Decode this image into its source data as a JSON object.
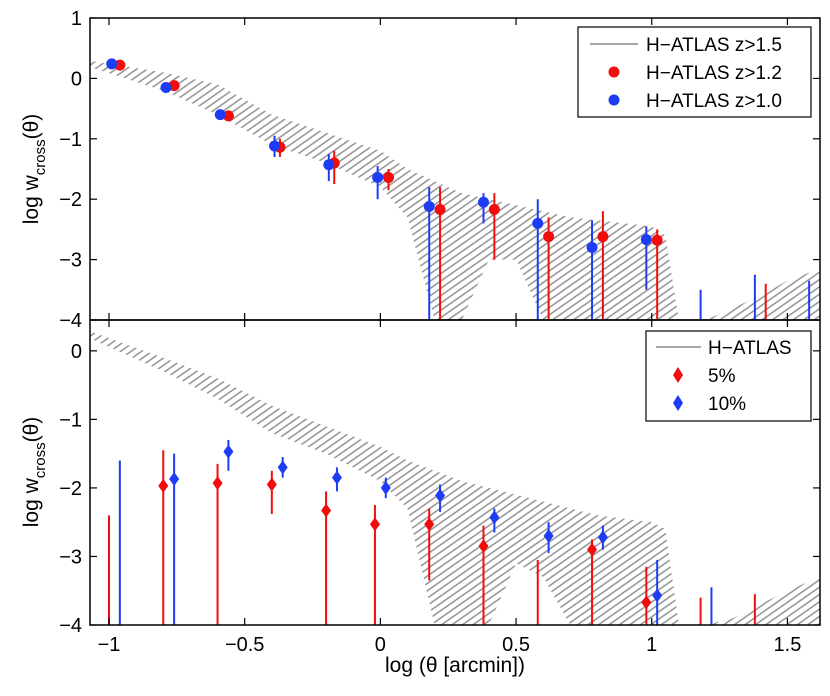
{
  "chart_data": [
    {
      "type": "scatter",
      "panel": "top",
      "xlabel": "",
      "ylabel_main": "log w",
      "ylabel_sub": "cross",
      "ylabel_tail": "(θ)",
      "xlim": [
        -1.07,
        1.62
      ],
      "ylim": [
        -4,
        1
      ],
      "yticks": [
        -4,
        -3,
        -2,
        -1,
        0,
        1
      ],
      "ytick_labels": [
        "−4",
        "−3",
        "−2",
        "−1",
        "0",
        "1"
      ],
      "legend_position": "top-right",
      "band": {
        "name": "H-ATLAS z>1.5",
        "color": "#8a8a8a",
        "x": [
          -1.08,
          -0.8,
          -0.6,
          -0.4,
          -0.2,
          0.0,
          0.1,
          0.2,
          0.3,
          0.4,
          0.5,
          0.6,
          0.7,
          0.8,
          0.9,
          1.0,
          1.05,
          1.1,
          1.2,
          1.3,
          1.4,
          1.5,
          1.62
        ],
        "upper": [
          0.3,
          0.1,
          -0.1,
          -0.6,
          -0.9,
          -1.2,
          -1.5,
          -1.7,
          -1.9,
          -2.0,
          -2.1,
          -2.2,
          -2.3,
          -2.35,
          -2.4,
          -2.45,
          -2.6,
          -4.0,
          -4.0,
          -3.8,
          -3.6,
          -3.35,
          -3.15
        ],
        "lower": [
          0.2,
          -0.2,
          -0.6,
          -1.1,
          -1.4,
          -1.8,
          -2.3,
          -4.0,
          -4.0,
          -3.0,
          -3.0,
          -4.0,
          -4.0,
          -4.0,
          -4.0,
          -4.0,
          -4.0,
          -4.0,
          -4.0,
          -4.0,
          -4.0,
          -4.0,
          -4.0
        ]
      },
      "series": [
        {
          "name": "H-ATLAS z>1.2",
          "color": "#f20d0d",
          "marker": "circle",
          "points": [
            {
              "x": -0.96,
              "y": 0.22,
              "lo": 0.22,
              "hi": 0.22
            },
            {
              "x": -0.76,
              "y": -0.12,
              "lo": -0.12,
              "hi": -0.12
            },
            {
              "x": -0.56,
              "y": -0.62,
              "lo": -0.62,
              "hi": -0.62
            },
            {
              "x": -0.37,
              "y": -1.14,
              "lo": -1.3,
              "hi": -1.0
            },
            {
              "x": -0.17,
              "y": -1.4,
              "lo": -1.75,
              "hi": -1.2
            },
            {
              "x": 0.03,
              "y": -1.64,
              "lo": -1.85,
              "hi": -1.5
            },
            {
              "x": 0.22,
              "y": -2.17,
              "lo": -4.0,
              "hi": -1.8
            },
            {
              "x": 0.42,
              "y": -2.17,
              "lo": -3.0,
              "hi": -1.9
            },
            {
              "x": 0.62,
              "y": -2.62,
              "lo": -4.0,
              "hi": -2.3
            },
            {
              "x": 0.82,
              "y": -2.62,
              "lo": -4.0,
              "hi": -2.2
            },
            {
              "x": 1.02,
              "y": -2.68,
              "lo": -4.0,
              "hi": -2.5
            },
            {
              "x": 1.42,
              "y": null,
              "lo": -4.0,
              "hi": -3.4
            }
          ]
        },
        {
          "name": "H-ATLAS z>1.0",
          "color": "#1f3cf5",
          "marker": "circle",
          "points": [
            {
              "x": -0.99,
              "y": 0.24,
              "lo": 0.24,
              "hi": 0.24
            },
            {
              "x": -0.79,
              "y": -0.15,
              "lo": -0.15,
              "hi": -0.15
            },
            {
              "x": -0.59,
              "y": -0.6,
              "lo": -0.6,
              "hi": -0.6
            },
            {
              "x": -0.39,
              "y": -1.12,
              "lo": -1.3,
              "hi": -0.95
            },
            {
              "x": -0.19,
              "y": -1.43,
              "lo": -1.7,
              "hi": -1.25
            },
            {
              "x": -0.01,
              "y": -1.64,
              "lo": -2.0,
              "hi": -1.45
            },
            {
              "x": 0.18,
              "y": -2.12,
              "lo": -4.0,
              "hi": -1.8
            },
            {
              "x": 0.38,
              "y": -2.05,
              "lo": -2.4,
              "hi": -1.9
            },
            {
              "x": 0.58,
              "y": -2.4,
              "lo": -4.0,
              "hi": -2.0
            },
            {
              "x": 0.78,
              "y": -2.8,
              "lo": -4.0,
              "hi": -2.35
            },
            {
              "x": 0.98,
              "y": -2.67,
              "lo": -3.5,
              "hi": -2.45
            },
            {
              "x": 1.18,
              "y": null,
              "lo": -4.0,
              "hi": -3.5
            },
            {
              "x": 1.38,
              "y": null,
              "lo": -4.0,
              "hi": -3.25
            },
            {
              "x": 1.58,
              "y": null,
              "lo": -4.0,
              "hi": -3.35
            }
          ]
        }
      ],
      "legend": [
        {
          "label": "H−ATLAS z>1.5",
          "kind": "line",
          "color": "#8a8a8a"
        },
        {
          "label": "H−ATLAS z>1.2",
          "kind": "circle",
          "color": "#f20d0d"
        },
        {
          "label": "H−ATLAS z>1.0",
          "kind": "circle",
          "color": "#1f3cf5"
        }
      ]
    },
    {
      "type": "scatter",
      "panel": "bottom",
      "xlabel": "log (θ [arcmin])",
      "ylabel_main": "log w",
      "ylabel_sub": "cross",
      "ylabel_tail": "(θ)",
      "xlim": [
        -1.07,
        1.62
      ],
      "ylim": [
        -4,
        0.45
      ],
      "xticks": [
        -1,
        -0.5,
        0,
        0.5,
        1,
        1.5
      ],
      "xtick_labels": [
        "−1",
        "−0.5",
        "0",
        "0.5",
        "1",
        "1.5"
      ],
      "yticks": [
        -4,
        -3,
        -2,
        -1,
        0
      ],
      "ytick_labels": [
        "−4",
        "−3",
        "−2",
        "−1",
        "0"
      ],
      "legend_position": "top-right",
      "band": {
        "name": "H-ATLAS",
        "color": "#8a8a8a",
        "x": [
          -1.08,
          -0.8,
          -0.6,
          -0.4,
          -0.2,
          0.0,
          0.1,
          0.2,
          0.3,
          0.4,
          0.5,
          0.6,
          0.7,
          0.8,
          0.9,
          1.0,
          1.05,
          1.1,
          1.2,
          1.3,
          1.4,
          1.5,
          1.62
        ],
        "upper": [
          0.3,
          -0.1,
          -0.4,
          -0.8,
          -1.1,
          -1.4,
          -1.6,
          -1.75,
          -1.9,
          -2.0,
          -2.1,
          -2.2,
          -2.3,
          -2.4,
          -2.45,
          -2.5,
          -2.6,
          -4.0,
          -4.0,
          -3.9,
          -3.7,
          -3.5,
          -3.3
        ],
        "lower": [
          0.2,
          -0.3,
          -0.7,
          -1.2,
          -1.5,
          -1.9,
          -2.3,
          -4.0,
          -4.0,
          -4.0,
          -3.1,
          -3.3,
          -4.0,
          -4.0,
          -4.0,
          -4.0,
          -4.0,
          -4.0,
          -4.0,
          -4.0,
          -4.0,
          -4.0,
          -4.0
        ]
      },
      "series": [
        {
          "name": "5%",
          "color": "#f20d0d",
          "marker": "diamond",
          "points": [
            {
              "x": -1.0,
              "y": null,
              "lo": -4.0,
              "hi": -2.4
            },
            {
              "x": -0.8,
              "y": -1.97,
              "lo": -4.0,
              "hi": -1.45
            },
            {
              "x": -0.6,
              "y": -1.93,
              "lo": -4.0,
              "hi": -1.65
            },
            {
              "x": -0.4,
              "y": -1.95,
              "lo": -2.38,
              "hi": -1.75
            },
            {
              "x": -0.2,
              "y": -2.33,
              "lo": -4.0,
              "hi": -2.05
            },
            {
              "x": -0.02,
              "y": -2.53,
              "lo": -4.0,
              "hi": -2.25
            },
            {
              "x": 0.18,
              "y": -2.53,
              "lo": -3.35,
              "hi": -2.3
            },
            {
              "x": 0.38,
              "y": -2.85,
              "lo": -4.0,
              "hi": -2.55
            },
            {
              "x": 0.58,
              "y": null,
              "lo": -4.0,
              "hi": -3.05
            },
            {
              "x": 0.78,
              "y": -2.9,
              "lo": -4.0,
              "hi": -2.75
            },
            {
              "x": 0.98,
              "y": -3.67,
              "lo": -4.0,
              "hi": -3.15
            },
            {
              "x": 1.18,
              "y": null,
              "lo": -4.0,
              "hi": -3.6
            },
            {
              "x": 1.38,
              "y": null,
              "lo": -4.0,
              "hi": -3.55
            }
          ]
        },
        {
          "name": "10%",
          "color": "#1f3cf5",
          "marker": "diamond",
          "points": [
            {
              "x": -0.96,
              "y": null,
              "lo": -4.0,
              "hi": -1.6
            },
            {
              "x": -0.76,
              "y": -1.87,
              "lo": -4.0,
              "hi": -1.5
            },
            {
              "x": -0.56,
              "y": -1.47,
              "lo": -1.75,
              "hi": -1.3
            },
            {
              "x": -0.36,
              "y": -1.7,
              "lo": -1.85,
              "hi": -1.55
            },
            {
              "x": -0.16,
              "y": -1.85,
              "lo": -2.05,
              "hi": -1.7
            },
            {
              "x": 0.02,
              "y": -2.0,
              "lo": -2.15,
              "hi": -1.85
            },
            {
              "x": 0.22,
              "y": -2.11,
              "lo": -2.35,
              "hi": -1.95
            },
            {
              "x": 0.42,
              "y": -2.43,
              "lo": -2.65,
              "hi": -2.3
            },
            {
              "x": 0.62,
              "y": -2.7,
              "lo": -2.95,
              "hi": -2.5
            },
            {
              "x": 0.82,
              "y": -2.72,
              "lo": -2.9,
              "hi": -2.55
            },
            {
              "x": 1.02,
              "y": -3.57,
              "lo": -4.0,
              "hi": -3.05
            },
            {
              "x": 1.22,
              "y": null,
              "lo": -4.0,
              "hi": -3.45
            }
          ]
        }
      ],
      "legend": [
        {
          "label": "H−ATLAS",
          "kind": "line",
          "color": "#8a8a8a"
        },
        {
          "label": "5%",
          "kind": "diamond",
          "color": "#f20d0d"
        },
        {
          "label": "10%",
          "kind": "diamond",
          "color": "#1f3cf5"
        }
      ]
    }
  ]
}
